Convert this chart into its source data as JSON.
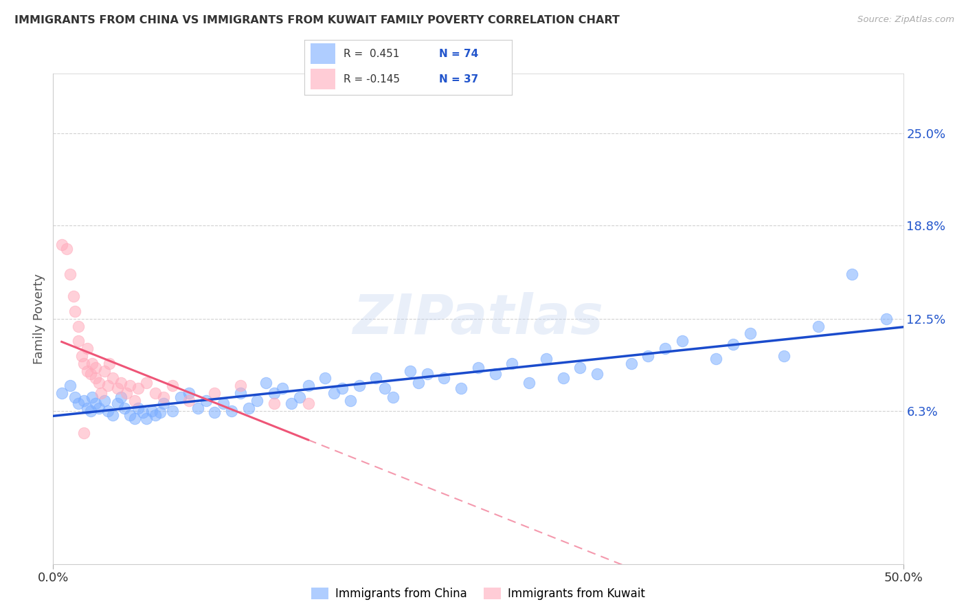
{
  "title": "IMMIGRANTS FROM CHINA VS IMMIGRANTS FROM KUWAIT FAMILY POVERTY CORRELATION CHART",
  "source": "Source: ZipAtlas.com",
  "ylabel": "Family Poverty",
  "y_ticks": [
    0.063,
    0.125,
    0.188,
    0.25
  ],
  "y_tick_labels": [
    "6.3%",
    "12.5%",
    "18.8%",
    "25.0%"
  ],
  "xlim": [
    0.0,
    0.5
  ],
  "ylim": [
    -0.04,
    0.29
  ],
  "watermark": "ZIPatlas",
  "china_color": "#7aadff",
  "kuwait_color": "#ffaabb",
  "china_line_color": "#1a4bcc",
  "kuwait_line_color": "#ee5577",
  "china_x": [
    0.005,
    0.01,
    0.013,
    0.015,
    0.018,
    0.02,
    0.022,
    0.023,
    0.025,
    0.027,
    0.03,
    0.032,
    0.035,
    0.038,
    0.04,
    0.042,
    0.045,
    0.048,
    0.05,
    0.053,
    0.055,
    0.058,
    0.06,
    0.063,
    0.065,
    0.07,
    0.075,
    0.08,
    0.085,
    0.09,
    0.095,
    0.1,
    0.105,
    0.11,
    0.115,
    0.12,
    0.125,
    0.13,
    0.135,
    0.14,
    0.145,
    0.15,
    0.16,
    0.165,
    0.17,
    0.175,
    0.18,
    0.19,
    0.195,
    0.2,
    0.21,
    0.215,
    0.22,
    0.23,
    0.24,
    0.25,
    0.26,
    0.27,
    0.28,
    0.29,
    0.3,
    0.31,
    0.32,
    0.34,
    0.35,
    0.36,
    0.37,
    0.39,
    0.4,
    0.41,
    0.43,
    0.45,
    0.47,
    0.49
  ],
  "china_y": [
    0.075,
    0.08,
    0.072,
    0.068,
    0.07,
    0.065,
    0.063,
    0.072,
    0.068,
    0.065,
    0.07,
    0.063,
    0.06,
    0.068,
    0.072,
    0.065,
    0.06,
    0.058,
    0.065,
    0.062,
    0.058,
    0.063,
    0.06,
    0.062,
    0.068,
    0.063,
    0.072,
    0.075,
    0.065,
    0.07,
    0.062,
    0.068,
    0.063,
    0.075,
    0.065,
    0.07,
    0.082,
    0.075,
    0.078,
    0.068,
    0.072,
    0.08,
    0.085,
    0.075,
    0.078,
    0.07,
    0.08,
    0.085,
    0.078,
    0.072,
    0.09,
    0.082,
    0.088,
    0.085,
    0.078,
    0.092,
    0.088,
    0.095,
    0.082,
    0.098,
    0.085,
    0.092,
    0.088,
    0.095,
    0.1,
    0.105,
    0.11,
    0.098,
    0.108,
    0.115,
    0.1,
    0.12,
    0.155,
    0.125
  ],
  "kuwait_x": [
    0.005,
    0.008,
    0.01,
    0.012,
    0.013,
    0.015,
    0.015,
    0.017,
    0.018,
    0.02,
    0.02,
    0.022,
    0.023,
    0.025,
    0.025,
    0.027,
    0.028,
    0.03,
    0.032,
    0.033,
    0.035,
    0.038,
    0.04,
    0.043,
    0.045,
    0.048,
    0.05,
    0.055,
    0.06,
    0.065,
    0.07,
    0.08,
    0.095,
    0.11,
    0.13,
    0.15,
    0.018
  ],
  "kuwait_y": [
    0.175,
    0.172,
    0.155,
    0.14,
    0.13,
    0.12,
    0.11,
    0.1,
    0.095,
    0.105,
    0.09,
    0.088,
    0.095,
    0.085,
    0.092,
    0.082,
    0.075,
    0.09,
    0.08,
    0.095,
    0.085,
    0.078,
    0.082,
    0.075,
    0.08,
    0.07,
    0.078,
    0.082,
    0.075,
    0.072,
    0.08,
    0.07,
    0.075,
    0.08,
    0.068,
    0.068,
    0.048
  ]
}
